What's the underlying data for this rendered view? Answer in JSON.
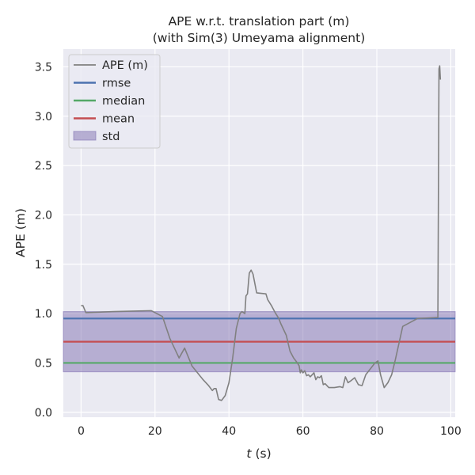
{
  "chart_data": {
    "type": "line",
    "title": "APE w.r.t. translation part (m)",
    "subtitle": "(with Sim(3) Umeyama alignment)",
    "xlabel_var": "t",
    "xlabel_unit": "(s)",
    "ylabel": "APE (m)",
    "xlim": [
      -4.8,
      101.2
    ],
    "ylim": [
      -0.05,
      3.68
    ],
    "xticks": [
      0,
      20,
      40,
      60,
      80,
      100
    ],
    "yticks": [
      0.0,
      0.5,
      1.0,
      1.5,
      2.0,
      2.5,
      3.0,
      3.5
    ],
    "grid": true,
    "legend_position": "top-left",
    "series": [
      {
        "name": "APE (m)",
        "color": "#808080",
        "x": [
          0,
          0.5,
          1.3,
          9,
          19,
          22,
          24,
          26.5,
          28,
          30,
          33,
          34.5,
          35.5,
          36,
          36.5,
          37.2,
          38,
          39,
          40,
          41,
          42,
          43,
          43.5,
          44.3,
          44.6,
          45,
          45.5,
          46,
          46.5,
          47.5,
          50,
          50.5,
          51.5,
          52.5,
          53.5,
          54,
          55.5,
          56.5,
          57.5,
          58.5,
          59,
          59.3,
          59.6,
          60,
          60.5,
          61,
          61.5,
          62,
          63,
          63.5,
          64,
          64.5,
          65,
          65.5,
          66,
          67,
          68.5,
          70,
          70.8,
          71.5,
          72.2,
          73,
          74,
          75,
          76,
          77,
          79.5,
          80.3,
          81,
          82,
          83,
          84,
          85,
          86,
          87,
          91,
          96.5,
          96.8,
          97,
          97.2
        ],
        "y": [
          1.08,
          1.08,
          1.01,
          1.02,
          1.03,
          0.97,
          0.75,
          0.55,
          0.65,
          0.47,
          0.33,
          0.27,
          0.22,
          0.24,
          0.24,
          0.13,
          0.12,
          0.17,
          0.3,
          0.55,
          0.85,
          1.0,
          1.02,
          1.0,
          1.18,
          1.2,
          1.41,
          1.44,
          1.4,
          1.21,
          1.2,
          1.14,
          1.08,
          1.01,
          0.95,
          0.9,
          0.78,
          0.62,
          0.55,
          0.5,
          0.47,
          0.4,
          0.43,
          0.4,
          0.42,
          0.37,
          0.38,
          0.36,
          0.4,
          0.33,
          0.36,
          0.35,
          0.37,
          0.28,
          0.29,
          0.25,
          0.25,
          0.26,
          0.25,
          0.36,
          0.3,
          0.32,
          0.35,
          0.28,
          0.27,
          0.38,
          0.5,
          0.52,
          0.38,
          0.25,
          0.3,
          0.38,
          0.53,
          0.7,
          0.87,
          0.95,
          0.96,
          3.48,
          3.51,
          3.37
        ]
      },
      {
        "name": "rmse",
        "color": "#4c72b0",
        "value": 0.95
      },
      {
        "name": "median",
        "color": "#55a868",
        "value": 0.5
      },
      {
        "name": "mean",
        "color": "#c44e52",
        "value": 0.715
      },
      {
        "name": "std",
        "color": "#8172b2",
        "band": [
          0.41,
          1.02
        ]
      }
    ]
  }
}
